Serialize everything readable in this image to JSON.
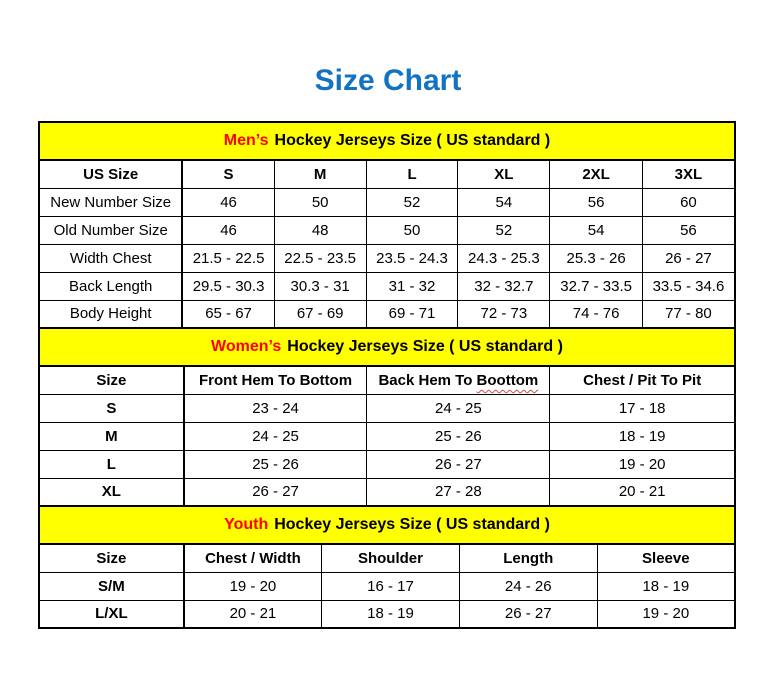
{
  "page": {
    "title": "Size Chart"
  },
  "colors": {
    "title_blue": "#1273C2",
    "band_yellow": "#FFFF00",
    "accent_red": "#FF0000",
    "squiggle_red": "#D24A43",
    "border_black": "#000000"
  },
  "sections": [
    {
      "id": "mens",
      "band": {
        "highlight": "Men’s",
        "rest": "Hockey Jerseys Size ( US standard )"
      },
      "label_bold": false,
      "columns": [
        "US Size",
        "S",
        "M",
        "L",
        "XL",
        "2XL",
        "3XL"
      ],
      "rows": [
        {
          "label": "New Number Size",
          "values": [
            "46",
            "50",
            "52",
            "54",
            "56",
            "60"
          ]
        },
        {
          "label": "Old Number Size",
          "values": [
            "46",
            "48",
            "50",
            "52",
            "54",
            "56"
          ]
        },
        {
          "label": "Width Chest",
          "values": [
            "21.5 - 22.5",
            "22.5 - 23.5",
            "23.5 - 24.3",
            "24.3 - 25.3",
            "25.3 - 26",
            "26 - 27"
          ]
        },
        {
          "label": "Back Length",
          "values": [
            "29.5 - 30.3",
            "30.3 - 31",
            "31 - 32",
            "32 - 32.7",
            "32.7 - 33.5",
            "33.5 - 34.6"
          ]
        },
        {
          "label": "Body Height",
          "values": [
            "65 - 67",
            "67 - 69",
            "69 - 71",
            "72 - 73",
            "74 - 76",
            "77 - 80"
          ]
        }
      ]
    },
    {
      "id": "womens",
      "band": {
        "highlight": "Women’s",
        "rest": "Hockey Jerseys Size ( US standard )"
      },
      "label_bold": true,
      "columns": [
        "Size",
        "Front Hem To Bottom",
        "Back Hem To Boottom",
        "Chest / Pit To Pit"
      ],
      "spellcheck": {
        "column_index": 2,
        "prefix": "Back Hem To ",
        "word": "Boottom"
      },
      "rows": [
        {
          "label": "S",
          "values": [
            "23 - 24",
            "24 - 25",
            "17 - 18"
          ]
        },
        {
          "label": "M",
          "values": [
            "24 - 25",
            "25 - 26",
            "18 - 19"
          ]
        },
        {
          "label": "L",
          "values": [
            "25 - 26",
            "26 - 27",
            "19 - 20"
          ]
        },
        {
          "label": "XL",
          "values": [
            "26 - 27",
            "27 - 28",
            "20 - 21"
          ]
        }
      ]
    },
    {
      "id": "youth",
      "band": {
        "highlight": "Youth",
        "rest": "Hockey Jerseys Size ( US standard )"
      },
      "label_bold": true,
      "columns": [
        "Size",
        "Chest / Width",
        "Shoulder",
        "Length",
        "Sleeve"
      ],
      "rows": [
        {
          "label": "S/M",
          "values": [
            "19 - 20",
            "16 - 17",
            "24 - 26",
            "18 - 19"
          ]
        },
        {
          "label": "L/XL",
          "values": [
            "20 - 21",
            "18 - 19",
            "26 - 27",
            "19 - 20"
          ]
        }
      ]
    }
  ]
}
